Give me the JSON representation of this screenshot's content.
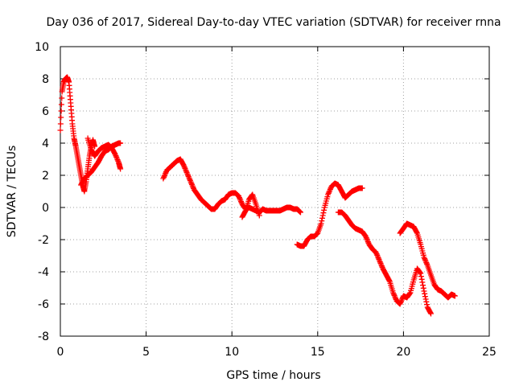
{
  "chart_data": {
    "type": "scatter",
    "title": "Day 036 of 2017, Sidereal Day-to-day VTEC variation (SDTVAR) for receiver rnna",
    "xlabel": "GPS time / hours",
    "ylabel": "SDTVAR / TECUs",
    "xlim": [
      0,
      25
    ],
    "ylim": [
      -8,
      10
    ],
    "xticks": [
      0,
      5,
      10,
      15,
      20,
      25
    ],
    "yticks": [
      -8,
      -6,
      -4,
      -2,
      0,
      2,
      4,
      6,
      8,
      10
    ],
    "xtick_labels": [
      "0",
      "5",
      "10",
      "15",
      "20",
      "25"
    ],
    "ytick_labels": [
      "-8",
      "-6",
      "-4",
      "-2",
      "0",
      "2",
      "4",
      "6",
      "8",
      "10"
    ],
    "grid": true,
    "marker": "+",
    "color": "#ff0000",
    "series": [
      {
        "name": "segment-1",
        "x": [
          0.0,
          0.1,
          0.2,
          0.3,
          0.4,
          0.5,
          0.6,
          0.7,
          0.8,
          0.9,
          1.0,
          1.1,
          1.2,
          1.3,
          1.4,
          1.5,
          1.6,
          1.7,
          1.8,
          1.9,
          2.0
        ],
        "y": [
          4.8,
          7.2,
          7.8,
          8.0,
          8.1,
          7.8,
          6.5,
          5.2,
          4.3,
          3.8,
          3.2,
          2.6,
          2.0,
          1.4,
          1.0,
          1.6,
          2.4,
          3.2,
          3.8,
          4.2,
          3.8
        ]
      },
      {
        "name": "segment-2",
        "x": [
          1.6,
          1.8,
          2.0,
          2.2,
          2.4,
          2.6,
          2.8,
          3.0,
          3.2,
          3.4,
          3.5
        ],
        "y": [
          4.3,
          3.6,
          3.2,
          3.5,
          3.7,
          3.8,
          3.9,
          3.7,
          3.3,
          2.8,
          2.4
        ]
      },
      {
        "name": "segment-3",
        "x": [
          1.2,
          1.4,
          1.6,
          1.8,
          2.0,
          2.2,
          2.4,
          2.6,
          2.8,
          3.0,
          3.2,
          3.4,
          3.5
        ],
        "y": [
          1.4,
          1.8,
          2.0,
          2.2,
          2.5,
          2.8,
          3.2,
          3.5,
          3.6,
          3.8,
          3.9,
          4.0,
          4.0
        ]
      },
      {
        "name": "segment-4",
        "x": [
          6.0,
          6.2,
          6.4,
          6.6,
          6.8,
          7.0,
          7.2,
          7.4,
          7.6,
          7.8,
          8.0,
          8.2,
          8.4,
          8.6,
          8.8,
          9.0,
          9.2,
          9.4,
          9.6,
          9.8,
          10.0,
          10.2,
          10.4,
          10.6,
          10.8,
          11.0,
          11.2,
          11.4,
          11.6,
          11.8,
          12.0,
          12.2,
          12.4,
          12.6,
          12.8,
          13.0,
          13.2,
          13.4,
          13.6,
          13.8,
          14.0
        ],
        "y": [
          1.8,
          2.3,
          2.5,
          2.7,
          2.9,
          3.0,
          2.6,
          2.1,
          1.6,
          1.1,
          0.8,
          0.5,
          0.3,
          0.1,
          -0.1,
          -0.1,
          0.2,
          0.4,
          0.5,
          0.8,
          0.9,
          0.9,
          0.7,
          0.2,
          -0.1,
          0.0,
          -0.1,
          -0.2,
          -0.3,
          -0.1,
          -0.2,
          -0.2,
          -0.2,
          -0.2,
          -0.2,
          -0.1,
          0.0,
          0.0,
          -0.1,
          -0.1,
          -0.3
        ]
      },
      {
        "name": "segment-5",
        "x": [
          10.6,
          10.8,
          11.0,
          11.2,
          11.4,
          11.6
        ],
        "y": [
          -0.6,
          -0.2,
          0.5,
          0.8,
          0.2,
          -0.5
        ]
      },
      {
        "name": "segment-6",
        "x": [
          13.8,
          14.0,
          14.2,
          14.4,
          14.6,
          14.8,
          15.0,
          15.2,
          15.4,
          15.6,
          15.8,
          16.0,
          16.2,
          16.4,
          16.6,
          16.8,
          17.0,
          17.2,
          17.4,
          17.6
        ],
        "y": [
          -2.3,
          -2.4,
          -2.4,
          -2.0,
          -1.8,
          -1.8,
          -1.6,
          -1.0,
          0.0,
          0.8,
          1.3,
          1.5,
          1.4,
          1.0,
          0.6,
          0.8,
          1.0,
          1.1,
          1.2,
          1.2
        ]
      },
      {
        "name": "segment-7",
        "x": [
          16.2,
          16.4,
          16.6,
          16.8,
          17.0,
          17.2,
          17.4,
          17.6,
          17.8,
          18.0,
          18.2,
          18.4,
          18.6,
          18.8,
          19.0,
          19.2,
          19.4,
          19.6,
          19.8,
          20.0,
          20.2,
          20.4,
          20.6,
          20.8,
          21.0,
          21.2,
          21.4,
          21.6
        ],
        "y": [
          -0.3,
          -0.3,
          -0.5,
          -0.8,
          -1.1,
          -1.3,
          -1.4,
          -1.5,
          -1.8,
          -2.3,
          -2.6,
          -2.8,
          -3.3,
          -3.8,
          -4.2,
          -4.6,
          -5.3,
          -5.8,
          -6.0,
          -5.5,
          -5.6,
          -5.3,
          -4.5,
          -3.8,
          -4.1,
          -5.2,
          -6.2,
          -6.6
        ]
      },
      {
        "name": "segment-8",
        "x": [
          19.8,
          20.0,
          20.2,
          20.4,
          20.6,
          20.8,
          21.0,
          21.2,
          21.4,
          21.6,
          21.8,
          22.0,
          22.2,
          22.4,
          22.6,
          22.8,
          23.0
        ],
        "y": [
          -1.6,
          -1.3,
          -1.0,
          -1.1,
          -1.2,
          -1.6,
          -2.3,
          -3.1,
          -3.6,
          -4.2,
          -4.8,
          -5.1,
          -5.2,
          -5.4,
          -5.6,
          -5.4,
          -5.5
        ]
      }
    ]
  }
}
